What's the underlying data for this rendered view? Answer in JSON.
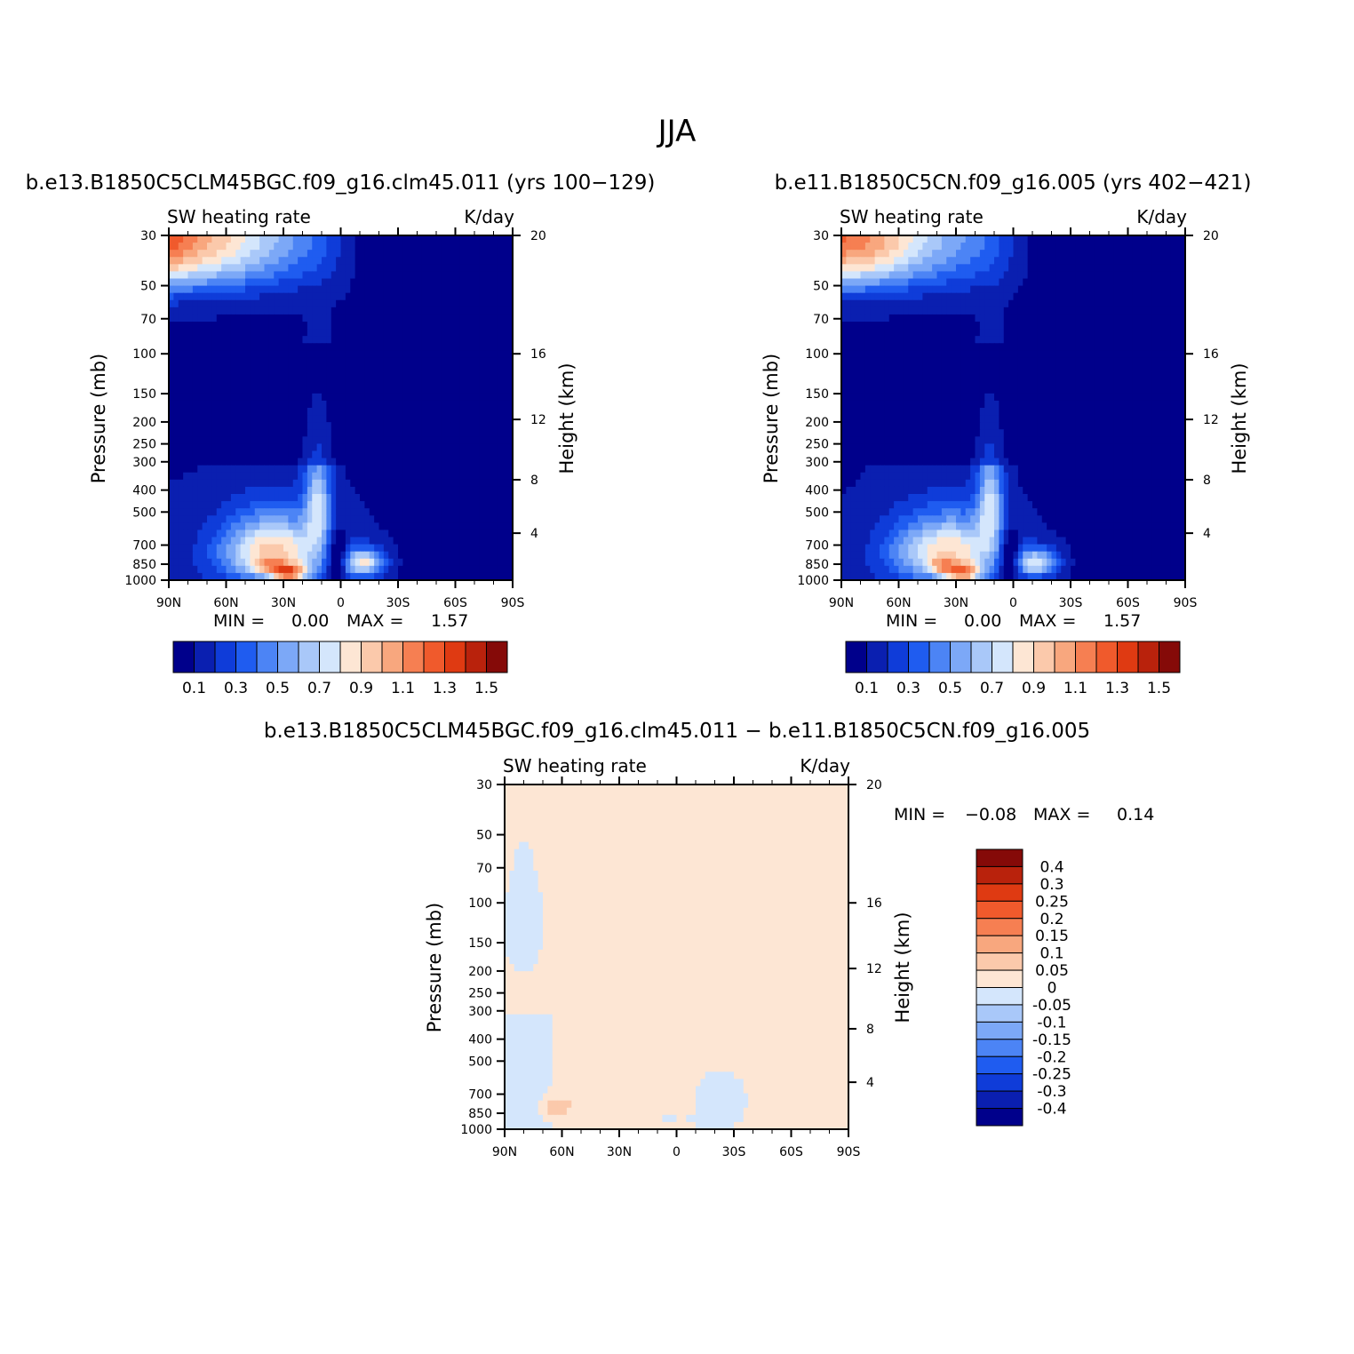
{
  "page": {
    "title": "JJA"
  },
  "palette": {
    "main": [
      "#00008b",
      "#0a1fb0",
      "#0f3cd9",
      "#1f5cf0",
      "#4c84f5",
      "#7ca8f7",
      "#a9c8f9",
      "#d4e6fc",
      "#fde6d4",
      "#fbc9ab",
      "#f8a77e",
      "#f67f52",
      "#f05a2c",
      "#df3a12",
      "#b9220c",
      "#850a08"
    ],
    "diff": [
      "#00008b",
      "#0a1fb0",
      "#0f3cd9",
      "#1f5cf0",
      "#4c84f5",
      "#7ca8f7",
      "#a9c8f9",
      "#d4e6fc",
      "#fde6d4",
      "#fbc9ab",
      "#f8a77e",
      "#f67f52",
      "#f05a2c",
      "#df3a12",
      "#b9220c",
      "#850a08"
    ]
  },
  "chart_data": [
    {
      "id": "panel_a",
      "type": "heatmap",
      "title": "b.e13.B1850C5CLM45BGC.f09_g16.clm45.011 (yrs 100-129)",
      "subtitle_left": "SW heating rate",
      "subtitle_right": "K/day",
      "xlabel": "",
      "ylabel": "Pressure (mb)",
      "ylabel_right": "Height (km)",
      "x_ticks": [
        "90N",
        "60N",
        "30N",
        "0",
        "30S",
        "60S",
        "90S"
      ],
      "y_ticks": [
        "30",
        "50",
        "70",
        "100",
        "150",
        "200",
        "250",
        "300",
        "400",
        "500",
        "700",
        "850",
        "1000"
      ],
      "y_ticks_right": [
        "20",
        "16",
        "12",
        "8",
        "4"
      ],
      "ylim": [
        1000,
        30
      ],
      "min_label": "MIN =",
      "min_value": "0.00",
      "max_label": "MAX =",
      "max_value": "1.57",
      "colorbar_labels": [
        "0.1",
        "0.3",
        "0.5",
        "0.7",
        "0.9",
        "1.1",
        "1.3",
        "1.5"
      ]
    },
    {
      "id": "panel_b",
      "type": "heatmap",
      "title": "b.e11.B1850C5CN.f09_g16.005 (yrs 402-421)",
      "subtitle_left": "SW heating rate",
      "subtitle_right": "K/day",
      "xlabel": "",
      "ylabel": "Pressure (mb)",
      "ylabel_right": "Height (km)",
      "x_ticks": [
        "90N",
        "60N",
        "30N",
        "0",
        "30S",
        "60S",
        "90S"
      ],
      "y_ticks": [
        "30",
        "50",
        "70",
        "100",
        "150",
        "200",
        "250",
        "300",
        "400",
        "500",
        "700",
        "850",
        "1000"
      ],
      "y_ticks_right": [
        "20",
        "16",
        "12",
        "8",
        "4"
      ],
      "ylim": [
        1000,
        30
      ],
      "min_label": "MIN =",
      "min_value": "0.00",
      "max_label": "MAX =",
      "max_value": "1.57",
      "colorbar_labels": [
        "0.1",
        "0.3",
        "0.5",
        "0.7",
        "0.9",
        "1.1",
        "1.3",
        "1.5"
      ]
    },
    {
      "id": "panel_diff",
      "type": "heatmap",
      "title": "b.e13.B1850C5CLM45BGC.f09_g16.clm45.011 - b.e11.B1850C5CN.f09_g16.005",
      "subtitle_left": "SW heating rate",
      "subtitle_right": "K/day",
      "xlabel": "",
      "ylabel": "Pressure (mb)",
      "ylabel_right": "Height (km)",
      "x_ticks": [
        "90N",
        "60N",
        "30N",
        "0",
        "30S",
        "60S",
        "90S"
      ],
      "y_ticks": [
        "30",
        "50",
        "70",
        "100",
        "150",
        "200",
        "250",
        "300",
        "400",
        "500",
        "700",
        "850",
        "1000"
      ],
      "y_ticks_right": [
        "20",
        "16",
        "12",
        "8",
        "4"
      ],
      "ylim": [
        1000,
        30
      ],
      "min_label": "MIN =",
      "min_value": "-0.08",
      "max_label": "MAX =",
      "max_value": "0.14",
      "colorbar_labels": [
        "0.4",
        "0.3",
        "0.25",
        "0.2",
        "0.15",
        "0.1",
        "0.05",
        "0",
        "-0.05",
        "-0.1",
        "-0.15",
        "-0.2",
        "-0.25",
        "-0.3",
        "-0.4"
      ]
    }
  ]
}
